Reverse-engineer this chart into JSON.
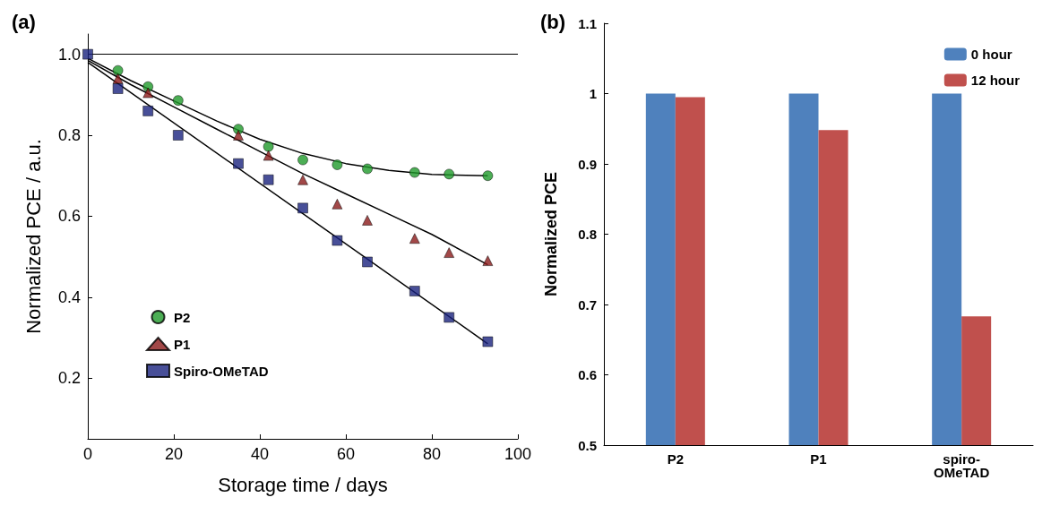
{
  "chart_data": [
    {
      "type": "scatter",
      "title": "(a)",
      "xlabel": "Storage time / days",
      "ylabel": "Normalized PCE / a.u.",
      "xlim": [
        0,
        100
      ],
      "xticks": [
        0,
        20,
        40,
        60,
        80,
        100
      ],
      "ylim": [
        0.05,
        1.05
      ],
      "yticks": [
        0.2,
        0.4,
        0.6,
        0.8,
        {
          "value": 1,
          "label": "1.0"
        }
      ],
      "grid": false,
      "legend": "bottom left",
      "ref_lines": [
        {
          "axis": "y",
          "value": 1.0,
          "color": "#000000"
        }
      ],
      "series": [
        {
          "name": "P2",
          "color": "#1f9a2a",
          "marker": "circle",
          "x": [
            7,
            14,
            21,
            35,
            42,
            50,
            58,
            65,
            76,
            84,
            93
          ],
          "values": [
            0.96,
            0.92,
            0.886,
            0.815,
            0.772,
            0.739,
            0.727,
            0.717,
            0.708,
            0.704,
            0.7
          ]
        },
        {
          "name": "P1",
          "color": "#8b1a1a",
          "marker": "triangle",
          "x": [
            7,
            14,
            35,
            42,
            50,
            58,
            65,
            76,
            84,
            93
          ],
          "values": [
            0.94,
            0.905,
            0.8,
            0.75,
            0.69,
            0.63,
            0.59,
            0.545,
            0.51,
            0.49
          ]
        },
        {
          "name": "Spiro-OMeTAD",
          "color": "#1a237e",
          "marker": "square",
          "x": [
            0,
            7,
            14,
            21,
            35,
            42,
            50,
            58,
            65,
            76,
            84,
            93
          ],
          "values": [
            1.0,
            0.915,
            0.86,
            0.8,
            0.73,
            0.69,
            0.62,
            0.54,
            0.487,
            0.415,
            0.35,
            0.29
          ]
        },
        {
          "type": "line",
          "color": "#000000",
          "x": [
            0,
            10,
            20,
            30,
            40,
            50,
            60,
            70,
            80,
            93
          ],
          "values": [
            0.99,
            0.935,
            0.885,
            0.835,
            0.79,
            0.755,
            0.73,
            0.713,
            0.703,
            0.7
          ]
        },
        {
          "type": "line",
          "color": "#000000",
          "x": [
            0,
            10,
            20,
            30,
            40,
            50,
            60,
            70,
            80,
            93
          ],
          "values": [
            0.985,
            0.925,
            0.87,
            0.815,
            0.76,
            0.705,
            0.655,
            0.605,
            0.555,
            0.48
          ]
        },
        {
          "type": "line",
          "color": "#000000",
          "x": [
            0,
            93
          ],
          "values": [
            0.98,
            0.285
          ]
        }
      ]
    },
    {
      "type": "bar",
      "title": "(b)",
      "ylabel": "Normalized PCE",
      "categories": [
        "P2",
        "P1",
        "spiro-\nOMeTAD"
      ],
      "ylim": [
        0.5,
        1.1
      ],
      "yticks": [
        0.5,
        0.6,
        0.7,
        0.8,
        0.9,
        1,
        1.1
      ],
      "grid": false,
      "legend": "top right",
      "series": [
        {
          "name": "0 hour",
          "color": "#4f81bd",
          "values": [
            1,
            1,
            1
          ]
        },
        {
          "name": "12 hour",
          "color": "#c0504d",
          "values": [
            0.995,
            0.948,
            0.683
          ]
        }
      ]
    }
  ]
}
